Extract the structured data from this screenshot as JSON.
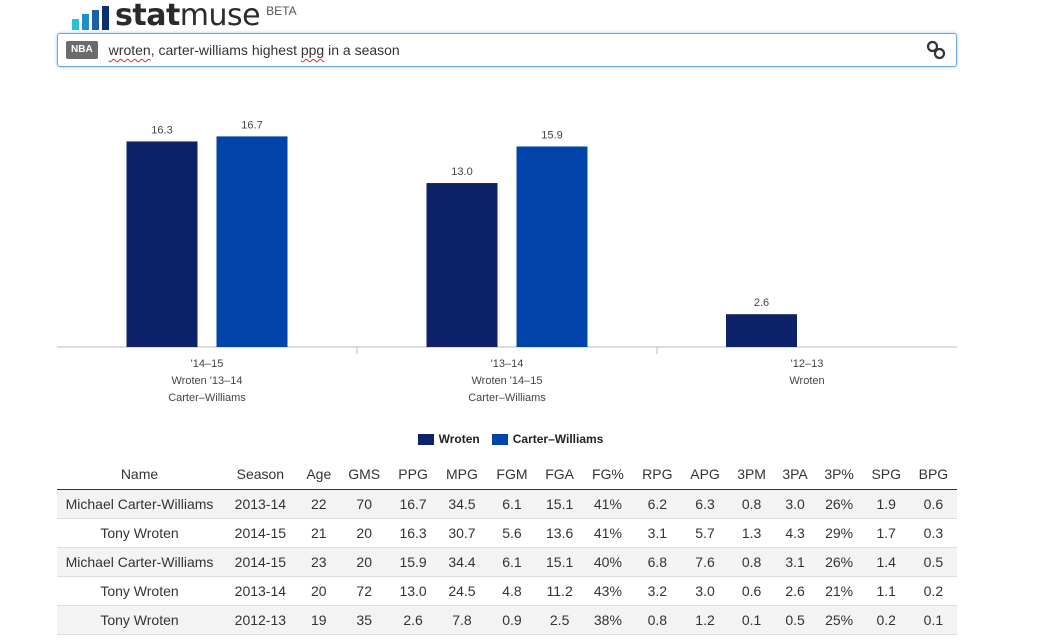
{
  "header": {
    "logo_text_bold": "stat",
    "logo_text_light": "muse",
    "beta": "BETA"
  },
  "search": {
    "league_badge": "NBA",
    "query_word1": "wroten",
    "query_mid": ", carter-williams highest ",
    "query_word2": "ppg",
    "query_end": " in a season"
  },
  "colors": {
    "wroten": "#0d2268",
    "carter_williams": "#0044aa",
    "logo_bar1": "#2bc3d2",
    "logo_bar2": "#1e90c9",
    "logo_bar3": "#1b5fa6",
    "logo_bar4": "#0e2f6e"
  },
  "chart_data": {
    "type": "bar",
    "categories": [
      [
        "'14–15",
        "Wroten '13–14",
        "Carter–Williams"
      ],
      [
        "'13–14",
        "Wroten '14–15",
        "Carter–Williams"
      ],
      [
        "'12–13",
        "Wroten"
      ]
    ],
    "series": [
      {
        "name": "Wroten",
        "values": [
          16.3,
          13.0,
          2.6
        ]
      },
      {
        "name": "Carter–Williams",
        "values": [
          16.7,
          15.9,
          null
        ]
      }
    ],
    "value_labels": [
      [
        "16.3",
        "16.7"
      ],
      [
        "13.0",
        "15.9"
      ],
      [
        "2.6",
        null
      ]
    ],
    "ylim": [
      0,
      18
    ],
    "legend": "bottom",
    "grid": false
  },
  "table": {
    "headers": [
      "Name",
      "Season",
      "Age",
      "GMS",
      "PPG",
      "MPG",
      "FGM",
      "FGA",
      "FG%",
      "RPG",
      "APG",
      "3PM",
      "3PA",
      "3P%",
      "SPG",
      "BPG"
    ],
    "rows": [
      [
        "Michael Carter-Williams",
        "2013-14",
        "22",
        "70",
        "16.7",
        "34.5",
        "6.1",
        "15.1",
        "41%",
        "6.2",
        "6.3",
        "0.8",
        "3.0",
        "26%",
        "1.9",
        "0.6"
      ],
      [
        "Tony Wroten",
        "2014-15",
        "21",
        "20",
        "16.3",
        "30.7",
        "5.6",
        "13.6",
        "41%",
        "3.1",
        "5.7",
        "1.3",
        "4.3",
        "29%",
        "1.7",
        "0.3"
      ],
      [
        "Michael Carter-Williams",
        "2014-15",
        "23",
        "20",
        "15.9",
        "34.4",
        "6.1",
        "15.1",
        "40%",
        "6.8",
        "7.6",
        "0.8",
        "3.1",
        "26%",
        "1.4",
        "0.5"
      ],
      [
        "Tony Wroten",
        "2013-14",
        "20",
        "72",
        "13.0",
        "24.5",
        "4.8",
        "11.2",
        "43%",
        "3.2",
        "3.0",
        "0.6",
        "2.6",
        "21%",
        "1.1",
        "0.2"
      ],
      [
        "Tony Wroten",
        "2012-13",
        "19",
        "35",
        "2.6",
        "7.8",
        "0.9",
        "2.5",
        "38%",
        "0.8",
        "1.2",
        "0.1",
        "0.5",
        "25%",
        "0.2",
        "0.1"
      ]
    ]
  }
}
